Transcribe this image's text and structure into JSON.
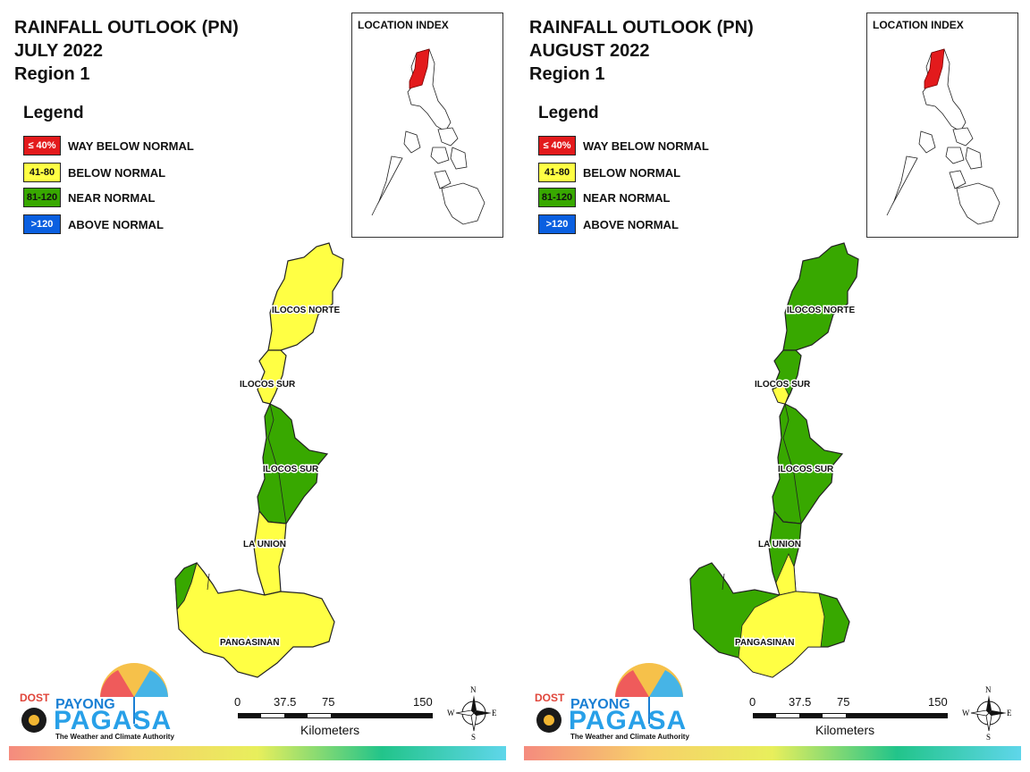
{
  "legend": {
    "title": "Legend",
    "items": [
      {
        "range": "≤ 40%",
        "label": "WAY BELOW NORMAL",
        "color": "#e31a1c",
        "text_color": "#ffffff"
      },
      {
        "range": "41-80",
        "label": "BELOW NORMAL",
        "color": "#ffff44",
        "text_color": "#111111"
      },
      {
        "range": "81-120",
        "label": "NEAR NORMAL",
        "color": "#38a800",
        "text_color": "#111111"
      },
      {
        "range": ">120",
        "label": "ABOVE NORMAL",
        "color": "#0a5fe0",
        "text_color": "#ffffff"
      }
    ]
  },
  "panels": [
    {
      "title_line1": "RAINFALL OUTLOOK (PN)",
      "title_line2": "JULY 2022",
      "title_line3": "Region 1",
      "location_index_title": "LOCATION INDEX",
      "provinces": [
        {
          "name": "ILOCOS NORTE",
          "category": "BELOW NORMAL",
          "fill": "#ffff44"
        },
        {
          "name": "ILOCOS SUR",
          "category": "BELOW NORMAL",
          "fill": "#ffff44"
        },
        {
          "name": "ILOCOS SUR",
          "category": "NEAR NORMAL",
          "fill": "#38a800"
        },
        {
          "name": "LA UNION",
          "category": "BELOW NORMAL",
          "fill": "#ffff44"
        },
        {
          "name": "PANGASINAN",
          "category": "BELOW NORMAL",
          "fill": "#ffff44"
        }
      ]
    },
    {
      "title_line1": "RAINFALL OUTLOOK (PN)",
      "title_line2": "AUGUST 2022",
      "title_line3": "Region 1",
      "location_index_title": "LOCATION INDEX",
      "provinces": [
        {
          "name": "ILOCOS NORTE",
          "category": "NEAR NORMAL",
          "fill": "#38a800"
        },
        {
          "name": "ILOCOS SUR",
          "category": "BELOW NORMAL",
          "fill": "#ffff44"
        },
        {
          "name": "ILOCOS SUR",
          "category": "NEAR NORMAL",
          "fill": "#38a800"
        },
        {
          "name": "LA UNION",
          "category": "NEAR NORMAL",
          "fill": "#38a800"
        },
        {
          "name": "PANGASINAN",
          "category": "BELOW NORMAL",
          "fill": "#ffff44"
        }
      ]
    }
  ],
  "scale_bar": {
    "ticks": [
      "0",
      "37.5",
      "75",
      "150"
    ],
    "unit": "Kilometers"
  },
  "compass": {
    "n": "N",
    "s": "S",
    "e": "E",
    "w": "W"
  },
  "logo": {
    "dost": "DOST",
    "payong": "PAYONG",
    "pagasa": "PAGASA",
    "tagline": "The Weather and Climate Authority"
  }
}
